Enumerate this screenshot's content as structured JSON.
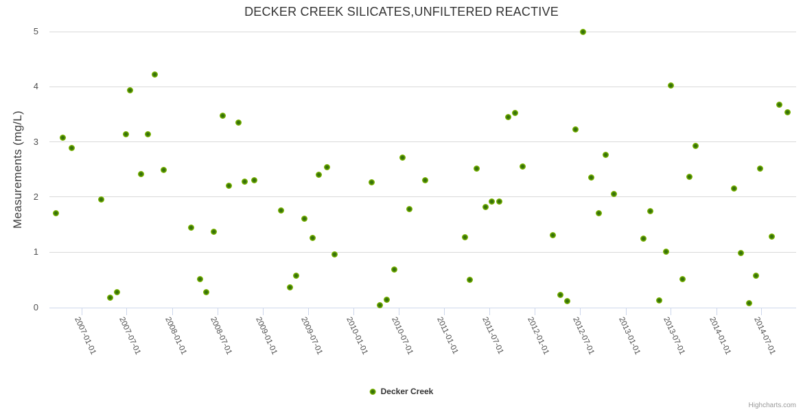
{
  "header": {
    "title": "DECKER CREEK SILICATES,UNFILTERED REACTIVE"
  },
  "legend": {
    "items": [
      {
        "label": "Decker Creek",
        "color": "#7cb500"
      }
    ]
  },
  "credits": {
    "label": "Highcharts.com"
  },
  "chart_data": {
    "type": "scatter",
    "title": "DECKER CREEK SILICATES,UNFILTERED REACTIVE",
    "xlabel": "",
    "ylabel": "Measurements (mg/L)",
    "ylim": [
      0,
      5
    ],
    "y_ticks": [
      0,
      1,
      2,
      3,
      4,
      5
    ],
    "x_tick_labels": [
      "2007-01-01",
      "2007-07-01",
      "2008-01-01",
      "2008-07-01",
      "2009-01-01",
      "2009-07-01",
      "2010-01-01",
      "2010-07-01",
      "2011-01-01",
      "2011-07-01",
      "2012-01-01",
      "2012-07-01",
      "2013-01-01",
      "2013-07-01",
      "2014-01-01",
      "2014-07-01"
    ],
    "x_range": [
      "2006-08-24",
      "2014-11-18"
    ],
    "grid": "horizontal",
    "legend_position": "bottom",
    "marker_color": "#7cb500",
    "series": [
      {
        "name": "Decker Creek",
        "color": "#7cb500",
        "points": [
          [
            "2006-09-19",
            1.7
          ],
          [
            "2006-10-16",
            3.08
          ],
          [
            "2006-11-21",
            2.89
          ],
          [
            "2007-03-20",
            1.95
          ],
          [
            "2007-04-25",
            0.18
          ],
          [
            "2007-05-22",
            0.28
          ],
          [
            "2007-06-27",
            3.14
          ],
          [
            "2007-07-15",
            3.93
          ],
          [
            "2007-08-27",
            2.41
          ],
          [
            "2007-09-25",
            3.14
          ],
          [
            "2007-10-21",
            4.22
          ],
          [
            "2007-11-27",
            2.49
          ],
          [
            "2008-03-16",
            1.44
          ],
          [
            "2008-04-22",
            0.51
          ],
          [
            "2008-05-18",
            0.28
          ],
          [
            "2008-06-16",
            1.37
          ],
          [
            "2008-07-21",
            3.47
          ],
          [
            "2008-08-16",
            2.2
          ],
          [
            "2008-09-24",
            3.35
          ],
          [
            "2008-10-19",
            2.28
          ],
          [
            "2008-11-27",
            2.31
          ],
          [
            "2009-03-14",
            1.75
          ],
          [
            "2009-04-18",
            0.36
          ],
          [
            "2009-05-15",
            0.57
          ],
          [
            "2009-06-16",
            1.61
          ],
          [
            "2009-07-19",
            1.26
          ],
          [
            "2009-08-14",
            2.4
          ],
          [
            "2009-09-15",
            2.54
          ],
          [
            "2009-10-17",
            0.96
          ],
          [
            "2010-03-13",
            2.27
          ],
          [
            "2010-04-15",
            0.04
          ],
          [
            "2010-05-14",
            0.14
          ],
          [
            "2010-06-13",
            0.68
          ],
          [
            "2010-07-17",
            2.71
          ],
          [
            "2010-08-14",
            1.78
          ],
          [
            "2010-10-15",
            2.3
          ],
          [
            "2011-03-25",
            1.27
          ],
          [
            "2011-04-13",
            0.5
          ],
          [
            "2011-05-11",
            2.52
          ],
          [
            "2011-06-16",
            1.82
          ],
          [
            "2011-07-12",
            1.92
          ],
          [
            "2011-08-10",
            1.92
          ],
          [
            "2011-09-14",
            3.45
          ],
          [
            "2011-10-14",
            3.52
          ],
          [
            "2011-11-11",
            2.55
          ],
          [
            "2012-03-14",
            1.31
          ],
          [
            "2012-04-13",
            0.23
          ],
          [
            "2012-05-10",
            0.11
          ],
          [
            "2012-06-12",
            3.23
          ],
          [
            "2012-07-13",
            5.0
          ],
          [
            "2012-08-15",
            2.35
          ],
          [
            "2012-09-15",
            1.71
          ],
          [
            "2012-10-11",
            2.76
          ],
          [
            "2012-11-15",
            2.05
          ],
          [
            "2013-03-13",
            1.24
          ],
          [
            "2013-04-10",
            1.74
          ],
          [
            "2013-05-15",
            0.12
          ],
          [
            "2013-06-12",
            1.01
          ],
          [
            "2013-07-02",
            4.02
          ],
          [
            "2013-08-17",
            0.51
          ],
          [
            "2013-09-13",
            2.37
          ],
          [
            "2013-10-10",
            2.93
          ],
          [
            "2014-03-12",
            2.15
          ],
          [
            "2014-04-09",
            0.98
          ],
          [
            "2014-05-12",
            0.07
          ],
          [
            "2014-06-09",
            0.57
          ],
          [
            "2014-06-27",
            2.51
          ],
          [
            "2014-08-13",
            1.28
          ],
          [
            "2014-09-11",
            3.67
          ],
          [
            "2014-10-15",
            3.54
          ]
        ]
      }
    ]
  }
}
